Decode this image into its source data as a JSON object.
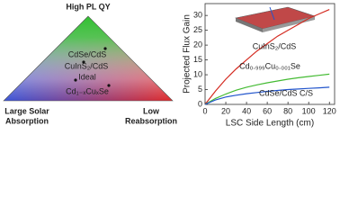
{
  "diagram": {
    "top_label": "High PL QY",
    "left_label": [
      "Large Solar",
      "Absorption"
    ],
    "right_label": [
      "Low",
      "Reabsorption"
    ],
    "points": [
      "CdSe/CdS",
      "CuInS₂/CdS",
      "Ideal",
      "Cd₁₋ₓCuₓSe"
    ]
  },
  "chart_data": {
    "type": "line",
    "xlabel": "LSC Side Length (cm)",
    "ylabel": "Projected Flux Gain",
    "x": [
      0,
      10,
      20,
      30,
      40,
      50,
      60,
      70,
      80,
      90,
      100,
      110,
      120
    ],
    "series": [
      {
        "name": "CuInS₂/CdS",
        "color": "#d42a20",
        "values": [
          0,
          4.5,
          8.5,
          12,
          15,
          18,
          20.5,
          23,
          25,
          27,
          29,
          30.5,
          32
        ]
      },
      {
        "name": "Cd₀.₉₉₉Cu₀.₀₀₁Se",
        "color": "#44bb33",
        "values": [
          0,
          2,
          3.5,
          4.8,
          5.8,
          6.6,
          7.3,
          7.9,
          8.5,
          9,
          9.4,
          9.8,
          10.2
        ]
      },
      {
        "name": "CdSe/CdS C/S",
        "color": "#2255cc",
        "values": [
          0,
          1.5,
          2.5,
          3.1,
          3.6,
          4,
          4.4,
          4.7,
          5,
          5.2,
          5.4,
          5.6,
          5.8
        ]
      }
    ],
    "xlim": [
      0,
      125
    ],
    "ylim": [
      0,
      34
    ],
    "xticks": [
      0,
      20,
      40,
      60,
      80,
      100,
      120
    ],
    "yticks": [
      0,
      5,
      10,
      15,
      20,
      25,
      30
    ]
  }
}
